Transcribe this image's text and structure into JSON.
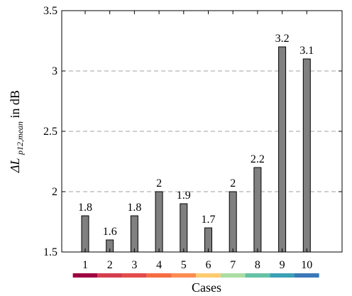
{
  "chart_data": {
    "type": "bar",
    "categories": [
      "1",
      "2",
      "3",
      "4",
      "5",
      "6",
      "7",
      "8",
      "9",
      "10"
    ],
    "values": [
      1.8,
      1.6,
      1.8,
      2.0,
      1.9,
      1.7,
      2.0,
      2.2,
      3.2,
      3.1
    ],
    "value_labels": [
      "1.8",
      "1.6",
      "1.8",
      "2",
      "1.9",
      "1.7",
      "2",
      "2.2",
      "3.2",
      "3.1"
    ],
    "xlabel": "Cases",
    "ylabel_prefix": "ΔL",
    "ylabel_subscript": "p12,mean",
    "ylabel_suffix": " in dB",
    "ylim": [
      1.5,
      3.5
    ],
    "yticks": [
      1.5,
      2,
      2.5,
      3,
      3.5
    ],
    "ytick_labels": [
      "1.5",
      "2",
      "2.5",
      "3",
      "3.5"
    ],
    "grid": "horizontal-dashed",
    "bar_color": "#808080",
    "bar_edge_color": "#000000",
    "grid_color": "#a0a0a0",
    "case_colors": [
      "#9e0142",
      "#d53e4f",
      "#e44b4b",
      "#f46d43",
      "#fb8d52",
      "#fdcc70",
      "#abdda4",
      "#66c2a5",
      "#3ba1b5",
      "#3a78b9"
    ]
  }
}
